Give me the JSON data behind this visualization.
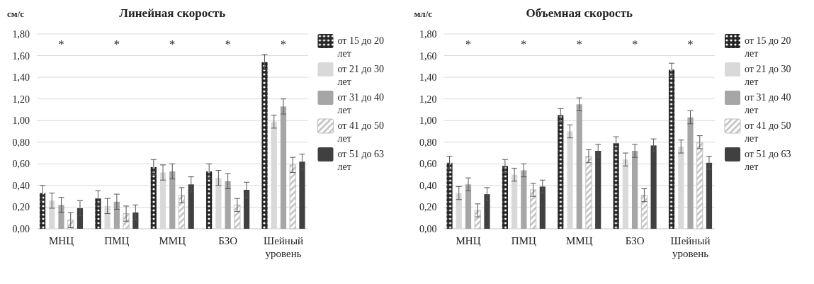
{
  "chart_data": [
    {
      "type": "bar",
      "title": "Линейная скорость",
      "ylabel": "см/с",
      "categories": [
        "МНЦ",
        "ПМЦ",
        "ММЦ",
        "БЗО",
        "Шейный уровень"
      ],
      "series": [
        {
          "name": "от 15 до 20 лет",
          "color": "#262626",
          "values": [
            0.33,
            0.28,
            0.57,
            0.53,
            1.54
          ],
          "errors": [
            0.07,
            0.07,
            0.07,
            0.07,
            0.07
          ]
        },
        {
          "name": "от 21 до 30 лет",
          "color": "#d9d9d9",
          "values": [
            0.26,
            0.21,
            0.52,
            0.47,
            0.99
          ],
          "errors": [
            0.07,
            0.07,
            0.07,
            0.07,
            0.06
          ]
        },
        {
          "name": "от 31 до 40 лет",
          "color": "#a6a6a6",
          "values": [
            0.22,
            0.25,
            0.53,
            0.44,
            1.13
          ],
          "errors": [
            0.07,
            0.07,
            0.07,
            0.07,
            0.07
          ]
        },
        {
          "name": "от 41 до 50 лет",
          "color": "#bfbfbf",
          "values": [
            0.08,
            0.14,
            0.31,
            0.22,
            0.59
          ],
          "errors": [
            0.07,
            0.07,
            0.07,
            0.06,
            0.07
          ]
        },
        {
          "name": "от 51 до 63 лет",
          "color": "#404040",
          "values": [
            0.19,
            0.15,
            0.41,
            0.36,
            0.62
          ],
          "errors": [
            0.07,
            0.07,
            0.07,
            0.07,
            0.07
          ]
        }
      ],
      "ylim": [
        0,
        1.8
      ],
      "yticks": [
        {
          "value": 0,
          "label": "0,00"
        },
        {
          "value": 0.2,
          "label": "0,20"
        },
        {
          "value": 0.4,
          "label": "0,40"
        },
        {
          "value": 0.6,
          "label": "0,60"
        },
        {
          "value": 0.8,
          "label": "0,80"
        },
        {
          "value": 1.0,
          "label": "1,00"
        },
        {
          "value": 1.2,
          "label": "1,20"
        },
        {
          "value": 1.4,
          "label": "1,40"
        },
        {
          "value": 1.6,
          "label": "1,60"
        },
        {
          "value": 1.8,
          "label": "1,80"
        }
      ],
      "grid": "y",
      "legend": "right",
      "annotations": [
        "*",
        "*",
        "*",
        "*",
        "*"
      ]
    },
    {
      "type": "bar",
      "title": "Объемная скорость",
      "ylabel": "мл/с",
      "categories": [
        "МНЦ",
        "ПМЦ",
        "ММЦ",
        "БЗО",
        "Шейный уровень"
      ],
      "series": [
        {
          "name": "от 15 до 20 лет",
          "color": "#262626",
          "values": [
            0.61,
            0.58,
            1.05,
            0.79,
            1.47
          ],
          "errors": [
            0.06,
            0.06,
            0.06,
            0.06,
            0.06
          ]
        },
        {
          "name": "от 21 до 30 лет",
          "color": "#d9d9d9",
          "values": [
            0.33,
            0.5,
            0.9,
            0.64,
            0.76
          ],
          "errors": [
            0.06,
            0.06,
            0.06,
            0.06,
            0.06
          ]
        },
        {
          "name": "от 31 до 40 лет",
          "color": "#a6a6a6",
          "values": [
            0.41,
            0.54,
            1.15,
            0.72,
            1.03
          ],
          "errors": [
            0.06,
            0.06,
            0.06,
            0.06,
            0.06
          ]
        },
        {
          "name": "от 41 до 50 лет",
          "color": "#bfbfbf",
          "values": [
            0.17,
            0.36,
            0.67,
            0.31,
            0.8
          ],
          "errors": [
            0.06,
            0.06,
            0.06,
            0.06,
            0.06
          ]
        },
        {
          "name": "от 51 до 63 лет",
          "color": "#404040",
          "values": [
            0.32,
            0.39,
            0.72,
            0.77,
            0.61
          ],
          "errors": [
            0.06,
            0.06,
            0.06,
            0.06,
            0.06
          ]
        }
      ],
      "ylim": [
        0,
        1.8
      ],
      "yticks": [
        {
          "value": 0,
          "label": "0,00"
        },
        {
          "value": 0.2,
          "label": "0,20"
        },
        {
          "value": 0.4,
          "label": "0,40"
        },
        {
          "value": 0.6,
          "label": "0,60"
        },
        {
          "value": 0.8,
          "label": "0,80"
        },
        {
          "value": 1.0,
          "label": "1,00"
        },
        {
          "value": 1.2,
          "label": "1,20"
        },
        {
          "value": 1.4,
          "label": "1,40"
        },
        {
          "value": 1.6,
          "label": "1,60"
        },
        {
          "value": 1.8,
          "label": "1,80"
        }
      ],
      "grid": "y",
      "legend": "right",
      "annotations": [
        "*",
        "*",
        "*",
        "*",
        "*"
      ]
    }
  ]
}
